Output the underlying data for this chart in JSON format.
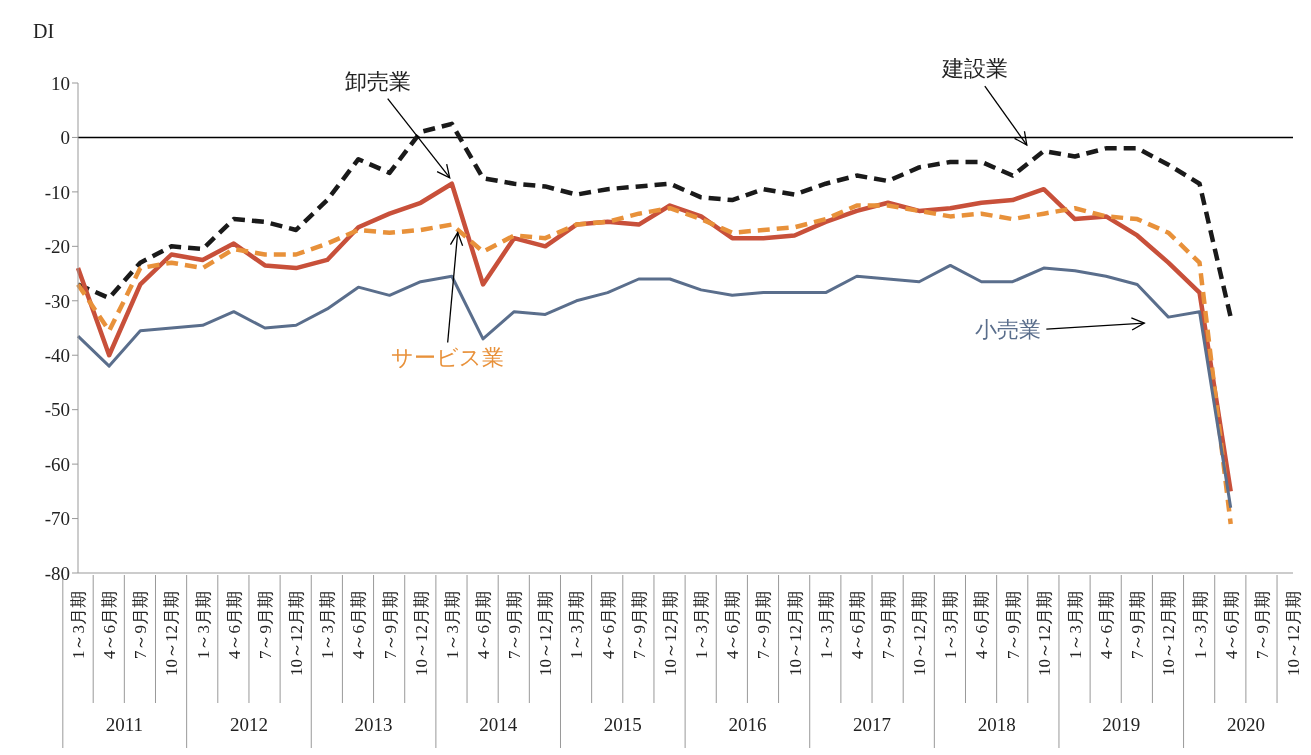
{
  "chart_data": {
    "type": "line",
    "ylabel": "DI",
    "categories": [
      "1～3月期",
      "4～6月期",
      "7～9月期",
      "10～12月期",
      "1～3月期",
      "4～6月期",
      "7～9月期",
      "10～12月期",
      "1～3月期",
      "4～6月期",
      "7～9月期",
      "10～12月期",
      "1～3月期",
      "4～6月期",
      "7～9月期",
      "10～12月期",
      "1～3月期",
      "4～6月期",
      "7～9月期",
      "10～12月期",
      "1～3月期",
      "4～6月期",
      "7～9月期",
      "10～12月期",
      "1～3月期",
      "4～6月期",
      "7～9月期",
      "10～12月期",
      "1～3月期",
      "4～6月期",
      "7～9月期",
      "10～12月期",
      "1～3月期",
      "4～6月期",
      "7～9月期",
      "10～12月期",
      "1～3月期",
      "4～6月期",
      "7～9月期",
      "10～12月期"
    ],
    "annotations": [
      "2011",
      "2012",
      "2013",
      "2014",
      "2015",
      "2016",
      "2017",
      "2018",
      "2019",
      "2020"
    ],
    "series": [
      {
        "name": "建設業",
        "color": "#1a1a1a",
        "line_style": "dashed",
        "values": [
          -27,
          -29.5,
          -23,
          -20,
          -20.5,
          -15,
          -15.5,
          -17,
          -11.5,
          -4,
          -6.5,
          1,
          2.5,
          -7.5,
          -8.5,
          -9,
          -10.5,
          -9.5,
          -9,
          -8.5,
          -11,
          -11.5,
          -9.5,
          -10.5,
          -8.5,
          -7,
          -8,
          -5.5,
          -4.5,
          -4.5,
          -7,
          -2.5,
          -3.5,
          -2,
          -2,
          -5,
          -8.5,
          -33,
          null,
          null
        ]
      },
      {
        "name": "卸売業",
        "color": "#c8503a",
        "line_style": "solid",
        "values": [
          -24,
          -40,
          -27,
          -21.5,
          -22.5,
          -19.5,
          -23.5,
          -24,
          -22.5,
          -16.5,
          -14,
          -12,
          -8.5,
          -27,
          -18.5,
          -20,
          -16,
          -15.5,
          -16,
          -12.5,
          -14.5,
          -18.5,
          -18.5,
          -18,
          -15.5,
          -13.5,
          -12,
          -13.5,
          -13,
          -12,
          -11.5,
          -9.5,
          -15,
          -14.5,
          -18,
          -23,
          -28.5,
          -65,
          null,
          null
        ]
      },
      {
        "name": "サービス業",
        "color": "#e8913a",
        "line_style": "dashed",
        "values": [
          -27,
          -35.5,
          -24,
          -23,
          -24,
          -20.5,
          -21.5,
          -21.5,
          -19.5,
          -17,
          -17.5,
          -17,
          -16,
          -21,
          -18,
          -18.5,
          -16,
          -15.5,
          -14,
          -13,
          -15,
          -17.5,
          -17,
          -16.5,
          -15,
          -12.5,
          -12.5,
          -13.5,
          -14.5,
          -14,
          -15,
          -14,
          -13,
          -14.5,
          -15,
          -17.5,
          -23,
          -71,
          null,
          null
        ]
      },
      {
        "name": "小売業",
        "color": "#5a6e8c",
        "line_style": "solid",
        "values": [
          -36.5,
          -42,
          -35.5,
          -35,
          -34.5,
          -32,
          -35,
          -34.5,
          -31.5,
          -27.5,
          -29,
          -26.5,
          -25.5,
          -37,
          -32,
          -32.5,
          -30,
          -28.5,
          -26,
          -26,
          -28,
          -29,
          -28.5,
          -28.5,
          -28.5,
          -25.5,
          -26,
          -26.5,
          -23.5,
          -26.5,
          -26.5,
          -24,
          -24.5,
          -25.5,
          -27,
          -33,
          -32,
          -68,
          null,
          null
        ]
      }
    ],
    "ylim": [
      -80,
      10
    ],
    "yticks": [
      -80,
      -70,
      -60,
      -50,
      -40,
      -30,
      -20,
      -10,
      0,
      10
    ],
    "ref_lines": [
      {
        "axis": "y",
        "value": 0,
        "color": "#000000",
        "line_style": "solid"
      }
    ],
    "grid": false,
    "marker": "none"
  }
}
